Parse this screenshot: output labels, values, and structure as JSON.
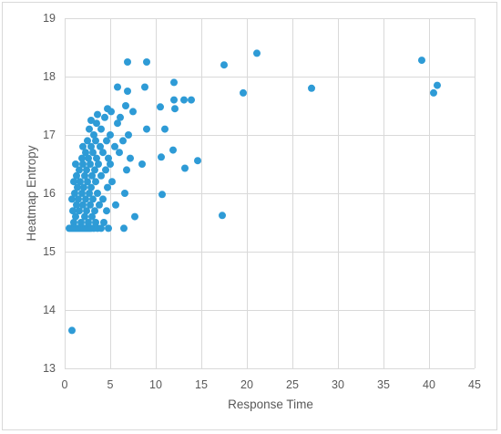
{
  "chart_data": {
    "type": "scatter",
    "title": "",
    "xlabel": "Response Time",
    "ylabel": "Heatmap Entropy",
    "xlim": [
      0,
      45
    ],
    "ylim": [
      13,
      19
    ],
    "x_ticks": [
      0,
      5,
      10,
      15,
      20,
      25,
      30,
      35,
      40,
      45
    ],
    "y_ticks": [
      13,
      14,
      15,
      16,
      17,
      18,
      19
    ],
    "grid": true,
    "legend": "none",
    "marker_color": "#2e9bd6",
    "series": [
      {
        "points": [
          [
            0.8,
            13.65
          ],
          [
            0.5,
            15.4
          ],
          [
            0.7,
            15.4
          ],
          [
            0.9,
            15.4
          ],
          [
            1.1,
            15.4
          ],
          [
            1.3,
            15.4
          ],
          [
            1.5,
            15.4
          ],
          [
            1.7,
            15.4
          ],
          [
            1.9,
            15.4
          ],
          [
            2.1,
            15.4
          ],
          [
            2.3,
            15.4
          ],
          [
            2.5,
            15.4
          ],
          [
            2.7,
            15.4
          ],
          [
            2.9,
            15.4
          ],
          [
            3.2,
            15.4
          ],
          [
            3.6,
            15.4
          ],
          [
            4.0,
            15.4
          ],
          [
            4.8,
            15.4
          ],
          [
            6.5,
            15.4
          ],
          [
            1.0,
            15.5
          ],
          [
            1.8,
            15.5
          ],
          [
            2.6,
            15.5
          ],
          [
            3.4,
            15.5
          ],
          [
            4.3,
            15.5
          ],
          [
            1.2,
            15.6
          ],
          [
            2.2,
            15.6
          ],
          [
            3.0,
            15.6
          ],
          [
            7.7,
            15.6
          ],
          [
            17.3,
            15.62
          ],
          [
            0.9,
            15.7
          ],
          [
            1.6,
            15.7
          ],
          [
            2.4,
            15.7
          ],
          [
            3.3,
            15.7
          ],
          [
            4.6,
            15.7
          ],
          [
            1.3,
            15.8
          ],
          [
            2.0,
            15.8
          ],
          [
            2.8,
            15.8
          ],
          [
            3.8,
            15.8
          ],
          [
            5.6,
            15.8
          ],
          [
            0.8,
            15.9
          ],
          [
            1.5,
            15.9
          ],
          [
            2.3,
            15.9
          ],
          [
            3.1,
            15.9
          ],
          [
            4.2,
            15.9
          ],
          [
            1.1,
            16.0
          ],
          [
            1.9,
            16.0
          ],
          [
            2.7,
            16.0
          ],
          [
            3.6,
            16.0
          ],
          [
            6.6,
            16.0
          ],
          [
            10.7,
            15.98
          ],
          [
            1.4,
            16.1
          ],
          [
            2.1,
            16.1
          ],
          [
            2.9,
            16.1
          ],
          [
            4.7,
            16.1
          ],
          [
            1.0,
            16.2
          ],
          [
            1.7,
            16.2
          ],
          [
            2.5,
            16.2
          ],
          [
            3.4,
            16.2
          ],
          [
            5.2,
            16.2
          ],
          [
            1.3,
            16.3
          ],
          [
            2.2,
            16.3
          ],
          [
            3.0,
            16.3
          ],
          [
            4.0,
            16.3
          ],
          [
            1.6,
            16.4
          ],
          [
            2.4,
            16.4
          ],
          [
            3.3,
            16.4
          ],
          [
            4.5,
            16.4
          ],
          [
            6.8,
            16.4
          ],
          [
            13.2,
            16.43
          ],
          [
            1.2,
            16.5
          ],
          [
            2.0,
            16.5
          ],
          [
            2.8,
            16.5
          ],
          [
            3.7,
            16.5
          ],
          [
            5.0,
            16.5
          ],
          [
            8.5,
            16.5
          ],
          [
            14.6,
            16.56
          ],
          [
            1.9,
            16.6
          ],
          [
            2.6,
            16.6
          ],
          [
            3.5,
            16.6
          ],
          [
            4.8,
            16.6
          ],
          [
            7.2,
            16.6
          ],
          [
            10.6,
            16.62
          ],
          [
            2.3,
            16.7
          ],
          [
            3.1,
            16.7
          ],
          [
            4.2,
            16.7
          ],
          [
            6.0,
            16.7
          ],
          [
            11.9,
            16.74
          ],
          [
            2.0,
            16.8
          ],
          [
            2.9,
            16.8
          ],
          [
            3.9,
            16.8
          ],
          [
            5.5,
            16.8
          ],
          [
            2.5,
            16.9
          ],
          [
            3.4,
            16.9
          ],
          [
            4.6,
            16.9
          ],
          [
            6.4,
            16.9
          ],
          [
            3.2,
            17.0
          ],
          [
            5.0,
            17.0
          ],
          [
            7.0,
            17.0
          ],
          [
            2.7,
            17.1
          ],
          [
            4.0,
            17.1
          ],
          [
            9.0,
            17.1
          ],
          [
            11.0,
            17.1
          ],
          [
            3.5,
            17.2
          ],
          [
            5.8,
            17.2
          ],
          [
            2.9,
            17.25
          ],
          [
            4.4,
            17.3
          ],
          [
            6.1,
            17.3
          ],
          [
            3.6,
            17.35
          ],
          [
            5.1,
            17.4
          ],
          [
            7.5,
            17.4
          ],
          [
            4.7,
            17.45
          ],
          [
            10.5,
            17.48
          ],
          [
            12.1,
            17.45
          ],
          [
            6.7,
            17.5
          ],
          [
            12.0,
            17.6
          ],
          [
            13.1,
            17.6
          ],
          [
            13.9,
            17.6
          ],
          [
            19.6,
            17.72
          ],
          [
            27.1,
            17.8
          ],
          [
            8.8,
            17.82
          ],
          [
            5.8,
            17.82
          ],
          [
            6.9,
            17.75
          ],
          [
            12.0,
            17.9
          ],
          [
            17.5,
            18.2
          ],
          [
            21.1,
            18.4
          ],
          [
            6.9,
            18.25
          ],
          [
            9.0,
            18.25
          ],
          [
            39.2,
            18.28
          ],
          [
            40.5,
            17.72
          ],
          [
            40.9,
            17.85
          ]
        ]
      }
    ]
  }
}
